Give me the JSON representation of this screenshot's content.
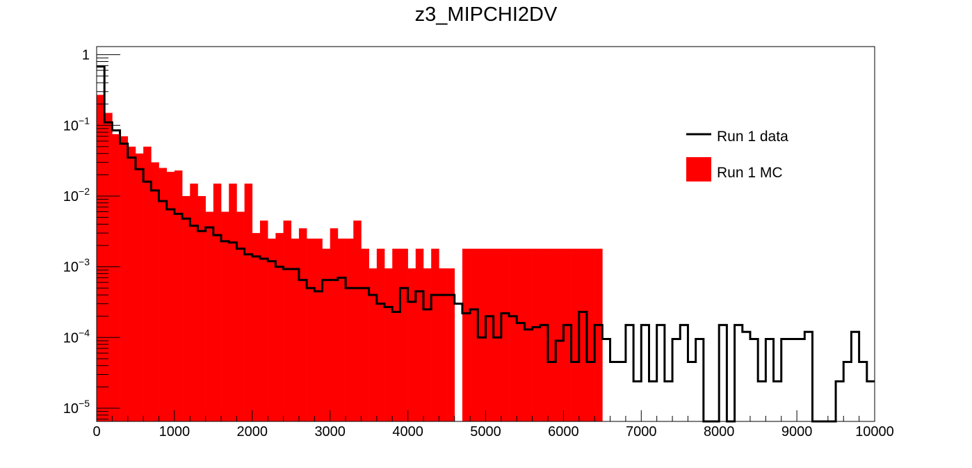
{
  "chart_data": {
    "type": "histogram",
    "title": "z3_MIPCHI2DV",
    "xlabel": "",
    "ylabel": "",
    "xlim": [
      0,
      10000
    ],
    "ylim": [
      6.5e-06,
      1.3
    ],
    "y_scale": "log",
    "bin_width": 100,
    "x_ticks": [
      "0",
      "1000",
      "2000",
      "3000",
      "4000",
      "5000",
      "6000",
      "7000",
      "8000",
      "9000",
      "10000"
    ],
    "y_ticks": [
      {
        "value": 1,
        "label": "1"
      },
      {
        "value": 0.1,
        "base": "10",
        "exp": "−1"
      },
      {
        "value": 0.01,
        "base": "10",
        "exp": "−2"
      },
      {
        "value": 0.001,
        "base": "10",
        "exp": "−3"
      },
      {
        "value": 0.0001,
        "base": "10",
        "exp": "−4"
      },
      {
        "value": 1e-05,
        "base": "10",
        "exp": "−5"
      }
    ],
    "legend": {
      "position": "top-right",
      "entries": [
        {
          "label": "Run 1 data",
          "style": "line",
          "color": "#000000"
        },
        {
          "label": "Run 1 MC",
          "style": "fill",
          "color": "#ff0000"
        }
      ]
    },
    "series": [
      {
        "name": "Run 1 MC",
        "style": "filled-histogram",
        "color": "#ff0000",
        "values": [
          0.27,
          0.15,
          0.075,
          0.07,
          0.05,
          0.04,
          0.05,
          0.03,
          0.025,
          0.022,
          0.023,
          0.01,
          0.015,
          0.01,
          0.006,
          0.015,
          0.006,
          0.015,
          0.006,
          0.015,
          0.003,
          0.0045,
          0.0025,
          0.003,
          0.0045,
          0.0025,
          0.0035,
          0.0025,
          0.0025,
          0.0018,
          0.0035,
          0.0025,
          0.0025,
          0.0045,
          0.0018,
          0.00095,
          0.0018,
          0.00095,
          0.0018,
          0.0018,
          0.00095,
          0.0018,
          0.00095,
          0.0018,
          0.00095,
          0.00095,
          0,
          0.0018,
          0.0018,
          0.0018,
          0.0018,
          0.0018,
          0.0018,
          0.0018,
          0.0018,
          0.0018,
          0.0018,
          0.0018,
          0.0018,
          0.0018,
          0.0018,
          0.0018,
          0.0018,
          0.0018,
          0.0018,
          0,
          0,
          0,
          0,
          0,
          0,
          0,
          0,
          0,
          0,
          0,
          0,
          0,
          0,
          0,
          0,
          0,
          0,
          0,
          0,
          0,
          0,
          0,
          0,
          0,
          0,
          0,
          0,
          0,
          0,
          0,
          0,
          0,
          0,
          0
        ]
      },
      {
        "name": "Run 1 data",
        "style": "step-line",
        "color": "#000000",
        "values": [
          0.68,
          0.11,
          0.085,
          0.055,
          0.035,
          0.024,
          0.016,
          0.012,
          0.0085,
          0.0065,
          0.0056,
          0.0048,
          0.0038,
          0.0032,
          0.0036,
          0.0028,
          0.0023,
          0.0022,
          0.0018,
          0.0015,
          0.0014,
          0.0013,
          0.0012,
          0.001,
          0.00093,
          0.00093,
          0.00065,
          0.0005,
          0.00045,
          0.00065,
          0.00065,
          0.0007,
          0.0005,
          0.0005,
          0.0005,
          0.0004,
          0.0003,
          0.00027,
          0.00023,
          0.0005,
          0.00032,
          0.00045,
          0.00025,
          0.0004,
          0.0004,
          0.0004,
          0.0003,
          0.00022,
          0.00025,
          0.0001,
          0.0002,
          0.0001,
          0.00022,
          0.0002,
          0.00016,
          0.00013,
          0.00014,
          0.00015,
          4.5e-05,
          9e-05,
          0.00015,
          4.5e-05,
          0.00023,
          4.5e-05,
          0.00015,
          9.5e-05,
          4.5e-05,
          4.5e-05,
          0.00015,
          2.4e-05,
          0.00015,
          2.4e-05,
          0.00015,
          2.4e-05,
          9.5e-05,
          0.00015,
          4.5e-05,
          9.5e-05,
          6.5e-06,
          6.5e-06,
          0.00015,
          6.5e-06,
          0.00015,
          0.00012,
          9.5e-05,
          2.4e-05,
          9.5e-05,
          2.4e-05,
          9.5e-05,
          9.5e-05,
          9.5e-05,
          0.00012,
          6.5e-06,
          6.5e-06,
          6.5e-06,
          2.4e-05,
          4.5e-05,
          0.00012,
          4.5e-05,
          2.4e-05
        ]
      }
    ]
  }
}
